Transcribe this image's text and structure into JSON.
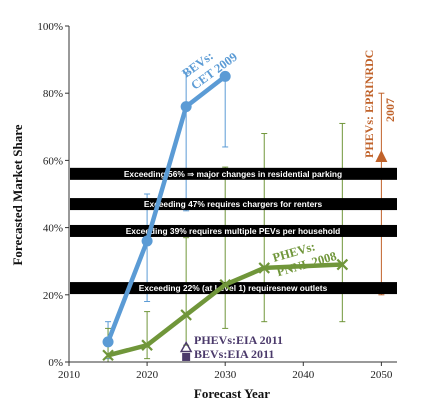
{
  "chart_data": {
    "type": "line",
    "xlabel": "Forecast Year",
    "ylabel": "Forecasted Market Share",
    "xlim": [
      2010,
      2052
    ],
    "ylim": [
      0,
      100
    ],
    "x_ticks": [
      "2010",
      "2020",
      "2030",
      "2040",
      "2050"
    ],
    "y_ticks": [
      "0%",
      "20%",
      "40%",
      "60%",
      "80%",
      "100%"
    ],
    "grid": false,
    "thresholds": [
      {
        "value": 56,
        "label": "Exceeding 56% ⇒ major changes in residential parking"
      },
      {
        "value": 47,
        "label": "Exceeding 47% requires chargers for renters"
      },
      {
        "value": 39,
        "label": "Exceeding 39% requires multiple PEVs per household"
      },
      {
        "value": 22,
        "label": "Exceeding 22% (at Level 1) requiresnew outlets"
      }
    ],
    "series": [
      {
        "name": "BEVs: CET 2009",
        "color": "#5b9bd5",
        "points": [
          {
            "x": 2015,
            "y": 6,
            "lo": 1,
            "hi": 12
          },
          {
            "x": 2020,
            "y": 36,
            "lo": 18,
            "hi": 50
          },
          {
            "x": 2025,
            "y": 76,
            "lo": 45,
            "hi": 86
          },
          {
            "x": 2030,
            "y": 85,
            "lo": 64,
            "hi": 85
          }
        ]
      },
      {
        "name": "PHEVs: PNNL 2008",
        "color": "#70963a",
        "points": [
          {
            "x": 2015,
            "y": 2,
            "lo": 0,
            "hi": 10
          },
          {
            "x": 2020,
            "y": 5,
            "lo": 1,
            "hi": 15
          },
          {
            "x": 2025,
            "y": 14,
            "lo": 5,
            "hi": 37
          },
          {
            "x": 2030,
            "y": 23,
            "lo": 10,
            "hi": 58
          },
          {
            "x": 2035,
            "y": 28,
            "lo": 12,
            "hi": 68
          },
          {
            "x": 2045,
            "y": 29,
            "lo": 12,
            "hi": 71
          }
        ]
      },
      {
        "name": "PHEVs: EPRI/NRDC 2007",
        "color": "#c0622a",
        "points": [
          {
            "x": 2050,
            "y": 61,
            "lo": 20,
            "hi": 80
          }
        ]
      },
      {
        "name": "PHEVs:EIA 2011",
        "color": "#4b3a6b",
        "points": [
          {
            "x": 2025,
            "y": 4
          }
        ]
      },
      {
        "name": "BEVs:EIA 2011",
        "color": "#4b3a6b",
        "points": [
          {
            "x": 2025,
            "y": 1.5
          }
        ]
      }
    ],
    "labels": {
      "bev_cet": [
        "BEVs:",
        "CET 2009"
      ],
      "phev_pnnl": [
        "PHEVs:",
        "PNNL 2008"
      ],
      "phev_epri": [
        "PHEVs: EPRINRDC",
        "2007"
      ],
      "phev_eia": "PHEVs:EIA 2011",
      "bev_eia": "BEVs:EIA 2011"
    }
  }
}
